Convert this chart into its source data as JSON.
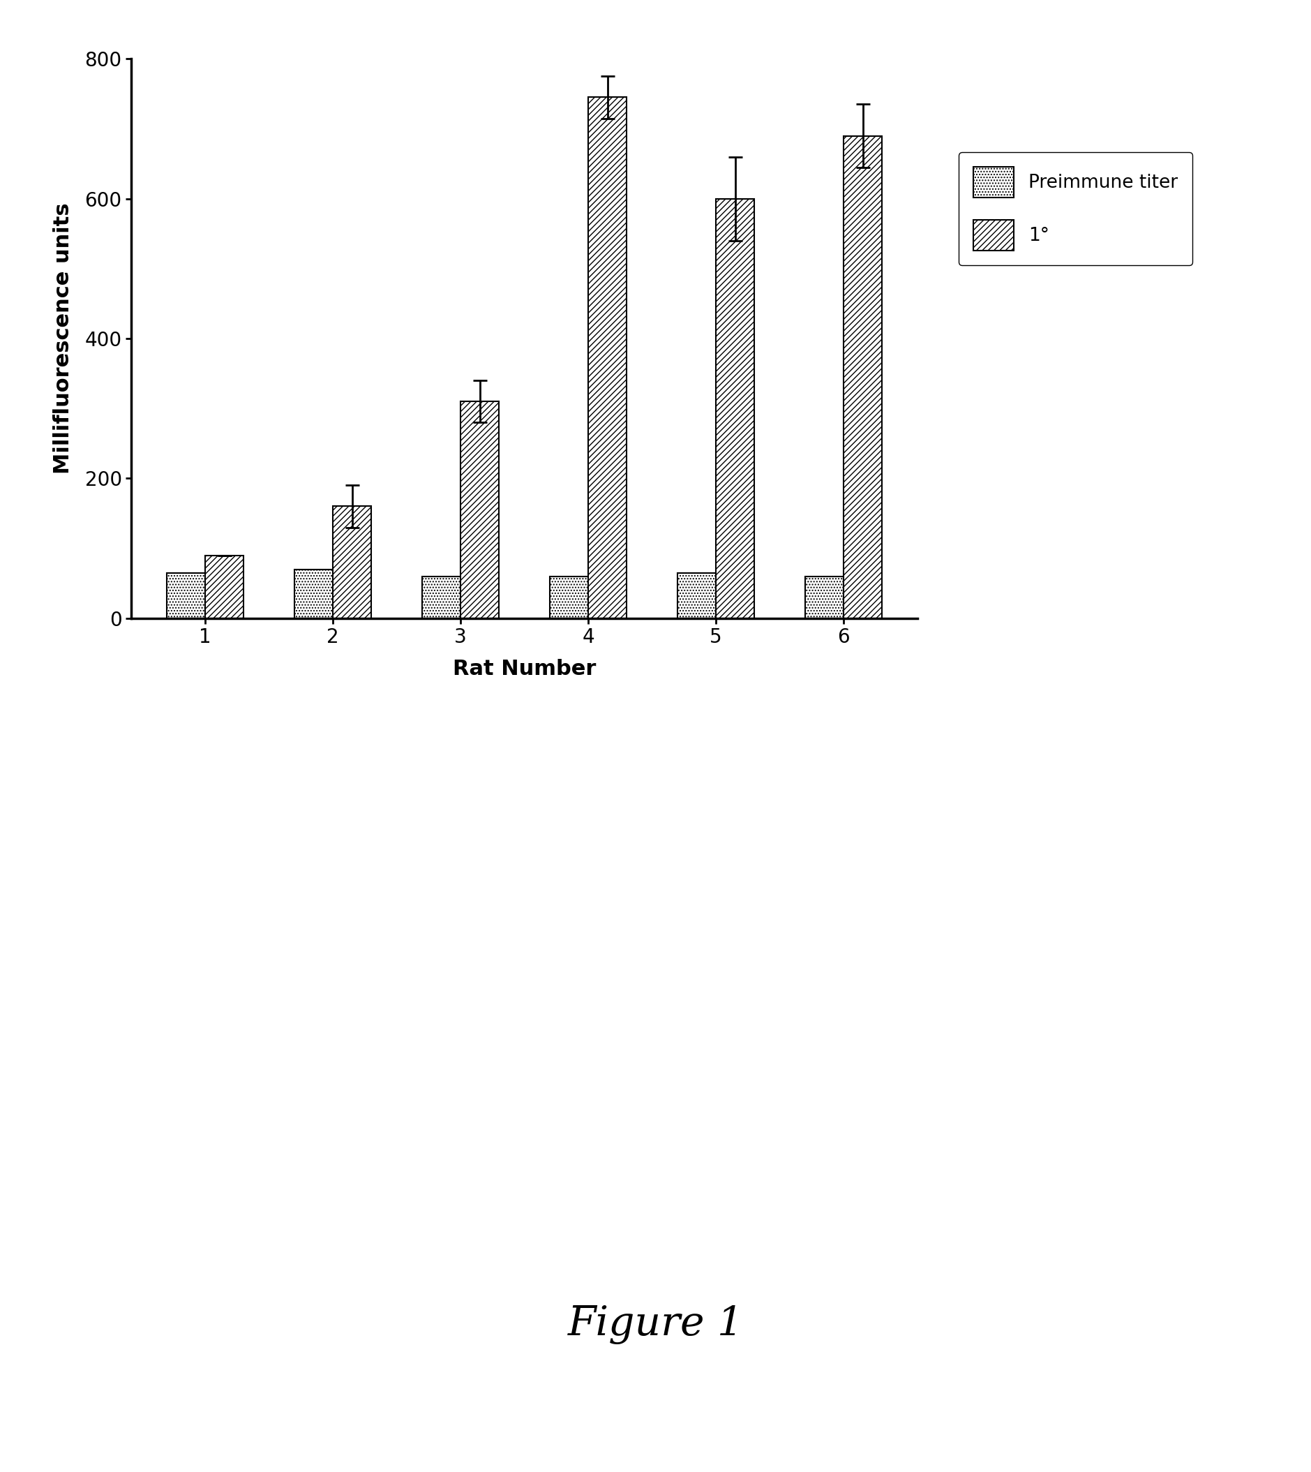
{
  "rat_numbers": [
    1,
    2,
    3,
    4,
    5,
    6
  ],
  "preimmune_values": [
    65,
    70,
    60,
    60,
    65,
    60
  ],
  "primary_values": [
    90,
    160,
    310,
    745,
    600,
    690
  ],
  "preimmune_errors": [
    0,
    0,
    0,
    0,
    0,
    0
  ],
  "primary_errors": [
    0,
    30,
    30,
    30,
    60,
    45
  ],
  "ylabel": "Millifluorescence units",
  "xlabel": "Rat Number",
  "ylim": [
    0,
    800
  ],
  "yticks": [
    0,
    200,
    400,
    600,
    800
  ],
  "legend_preimmune": "Preimmune titer",
  "legend_primary": "1°",
  "figure_label": "Figure 1",
  "bar_width": 0.3,
  "background_color": "#ffffff",
  "bar_edge_color": "#000000",
  "figure_label_fontsize": 42,
  "axis_label_fontsize": 22,
  "tick_fontsize": 20,
  "legend_fontsize": 19
}
